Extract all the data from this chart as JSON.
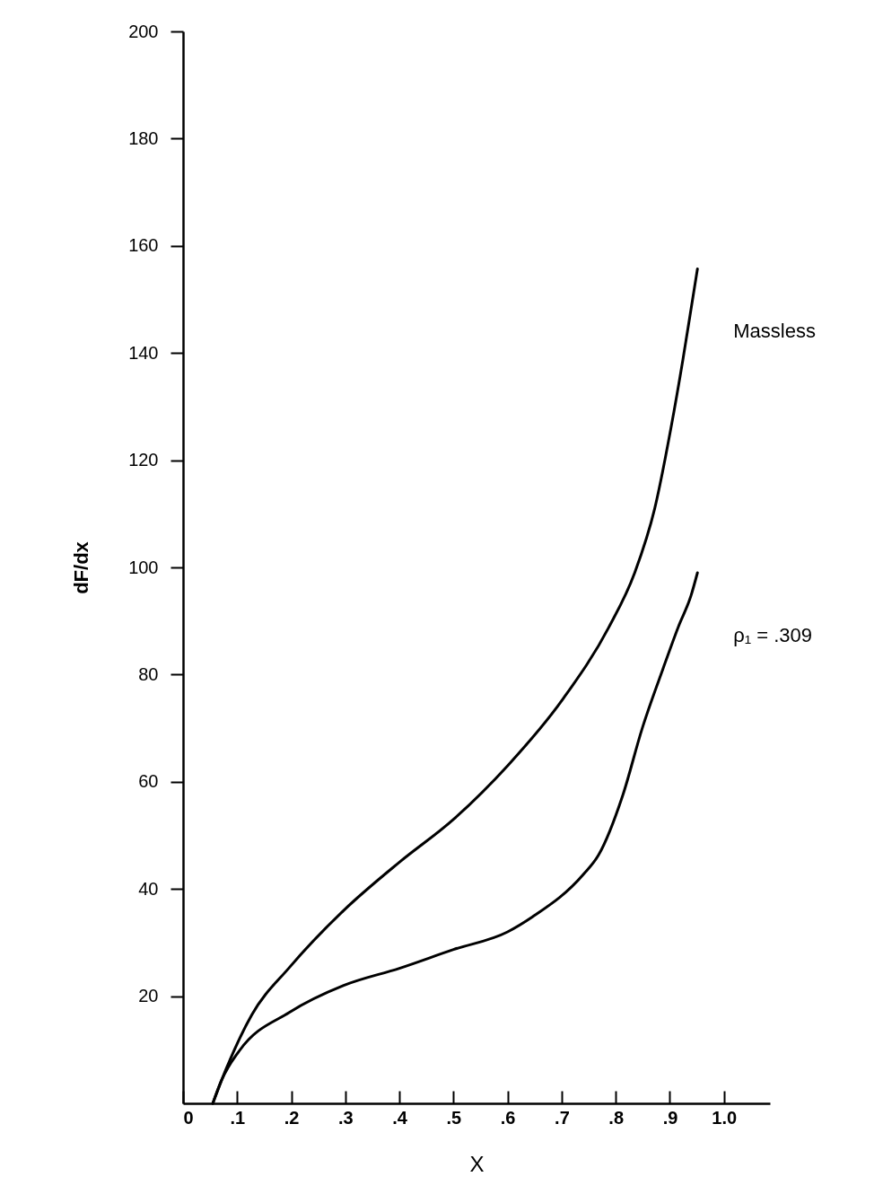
{
  "chart_data": {
    "type": "line",
    "xlabel": "X",
    "ylabel": "dF/dx",
    "xlim": [
      0,
      1.085
    ],
    "ylim": [
      0,
      200
    ],
    "xticks": [
      {
        "value": 0,
        "label": "0"
      },
      {
        "value": 0.1,
        "label": ".1"
      },
      {
        "value": 0.2,
        "label": ".2"
      },
      {
        "value": 0.3,
        "label": ".3"
      },
      {
        "value": 0.4,
        "label": ".4"
      },
      {
        "value": 0.5,
        "label": ".5"
      },
      {
        "value": 0.6,
        "label": ".6"
      },
      {
        "value": 0.7,
        "label": ".7"
      },
      {
        "value": 0.8,
        "label": ".8"
      },
      {
        "value": 0.9,
        "label": ".9"
      },
      {
        "value": 1.0,
        "label": "1.0"
      }
    ],
    "yticks": [
      20,
      40,
      60,
      80,
      100,
      120,
      140,
      160,
      180,
      200
    ],
    "grid": false,
    "legend": false,
    "marker": "none",
    "line_style": "solid",
    "series": [
      {
        "name": "Massless",
        "color": "#000000",
        "x": [
          0.055,
          0.08,
          0.127,
          0.197,
          0.297,
          0.4,
          0.5,
          0.6,
          0.702,
          0.787,
          0.835,
          0.872,
          0.902,
          0.924,
          0.942,
          0.951
        ],
        "values": [
          0,
          6.5,
          16.5,
          25.4,
          36,
          45,
          53,
          63,
          75.4,
          88.8,
          99,
          111,
          126,
          138.7,
          150,
          155.7
        ]
      },
      {
        "name": "ρ₁ =   .309",
        "color": "#000000",
        "x": [
          0.055,
          0.071,
          0.104,
          0.197,
          0.297,
          0.4,
          0.5,
          0.6,
          0.646,
          0.74,
          0.768,
          0.813,
          0.849,
          0.887,
          0.916,
          0.939,
          0.951
        ],
        "values": [
          0,
          4.3,
          9.8,
          17,
          22,
          25.2,
          28.7,
          32,
          34.8,
          42.7,
          46.3,
          57.5,
          70,
          81,
          89,
          94.7,
          99
        ]
      }
    ]
  }
}
